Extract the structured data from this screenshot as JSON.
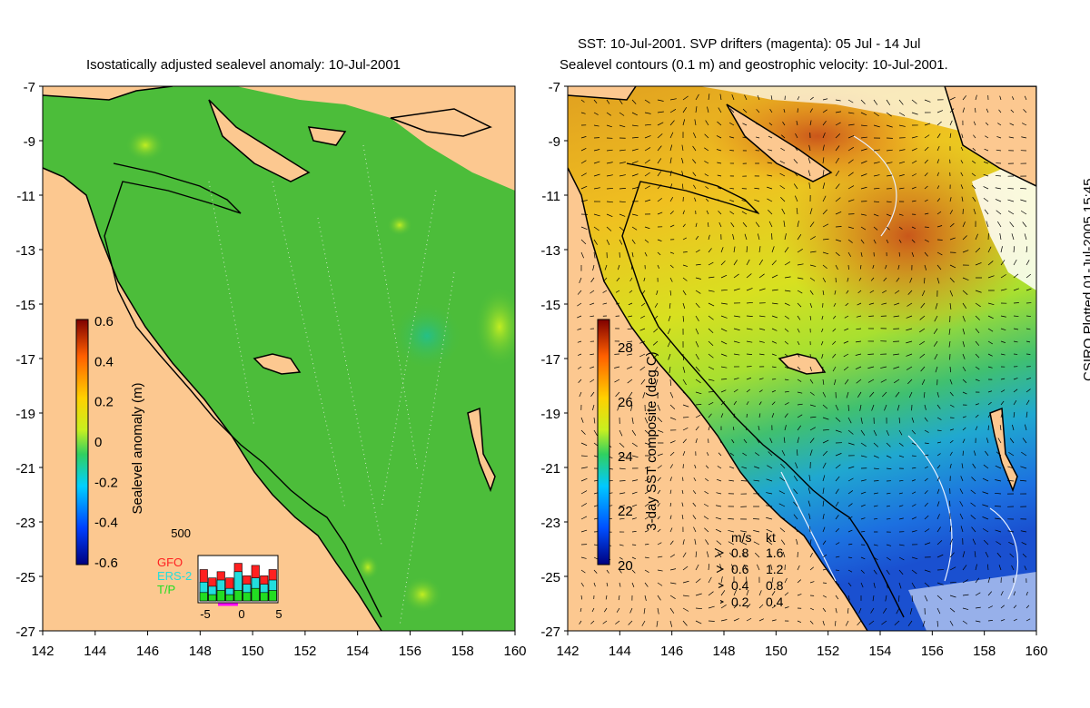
{
  "left_map": {
    "title": "Isostatically adjusted sealevel anomaly: 10-Jul-2001",
    "colorbar_label": "Sealevel anomaly (m)",
    "colorbar_ticks": [
      "0.6",
      "0.4",
      "0.2",
      "0",
      "-0.2",
      "-0.4",
      "-0.6"
    ],
    "histogram": {
      "ymax_label": "500",
      "x_ticks": [
        "-5",
        "0",
        "5"
      ],
      "legend": [
        "GFO",
        "ERS-2",
        "T/P"
      ],
      "colors": [
        "#ff2020",
        "#22dddd",
        "#22dd22"
      ]
    }
  },
  "right_map": {
    "title_line1": "SST: 10-Jul-2001. SVP drifters (magenta): 05 Jul - 14 Jul",
    "title_line2": "Sealevel contours (0.1 m) and geostrophic velocity: 10-Jul-2001.",
    "colorbar_label": "3-day SST composite (deg C)",
    "colorbar_ticks": [
      "28",
      "26",
      "24",
      "22",
      "20"
    ],
    "velocity_key": {
      "header_ms": "m/s",
      "header_kt": "kt",
      "rows": [
        {
          "ms": "0.8",
          "kt": "1.6"
        },
        {
          "ms": "0.6",
          "kt": "1.2"
        },
        {
          "ms": "0.4",
          "kt": "0.8"
        },
        {
          "ms": "0.2",
          "kt": "0.4"
        }
      ]
    }
  },
  "axes": {
    "lat_labels": [
      "-7",
      "-9",
      "-11",
      "-13",
      "-15",
      "-17",
      "-19",
      "-21",
      "-23",
      "-25",
      "-27"
    ],
    "lon_labels": [
      "142",
      "144",
      "146",
      "148",
      "150",
      "152",
      "154",
      "156",
      "158",
      "160"
    ]
  },
  "credit": "CSIRO Plotted 01-Jul-2005 15:45",
  "colors": {
    "land": "#fcc890",
    "ocean_green": "#4cbd3a",
    "sst_warm": "#e07a20",
    "sst_cool": "#1a6fd8"
  }
}
